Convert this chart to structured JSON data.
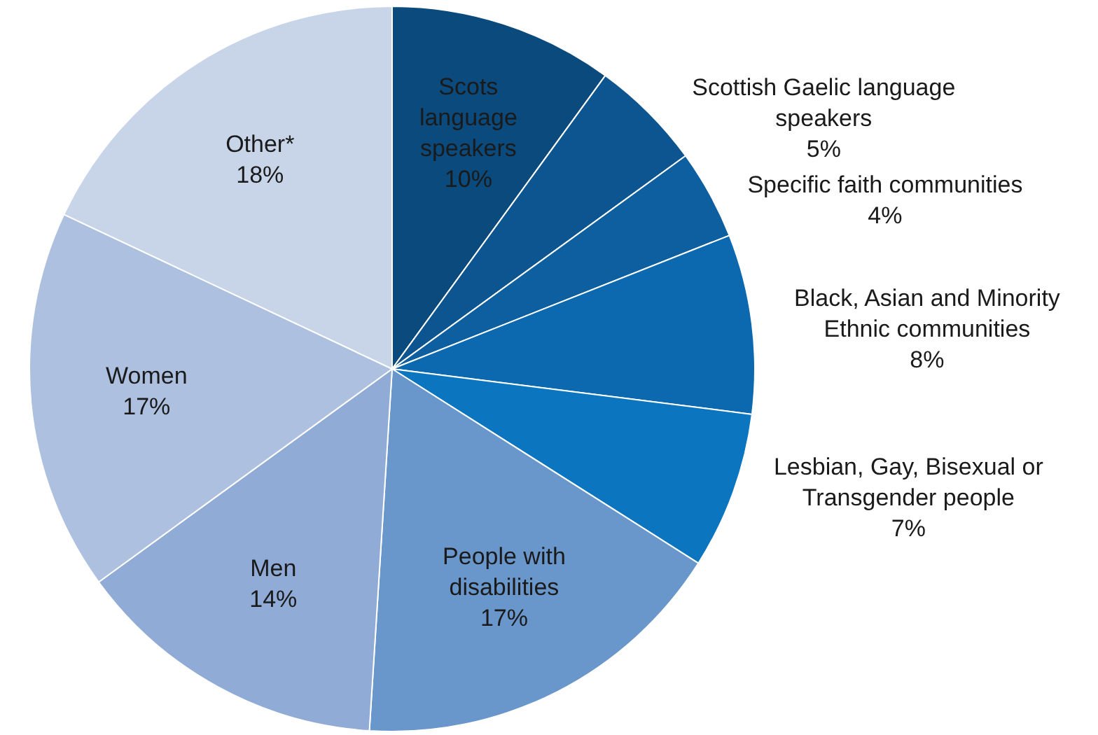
{
  "chart_data": {
    "type": "pie",
    "categories": [
      "Scots language speakers",
      "Scottish Gaelic language speakers",
      "Specific faith communities",
      "Black, Asian and Minority Ethnic communities",
      "Lesbian, Gay, Bisexual or Transgender people",
      "People with disabilities",
      "Men",
      "Women",
      "Other*"
    ],
    "values": [
      10,
      5,
      4,
      8,
      7,
      17,
      14,
      17,
      18
    ],
    "value_labels": [
      "10%",
      "5%",
      "4%",
      "8%",
      "7%",
      "17%",
      "14%",
      "17%",
      "18%"
    ],
    "colors": [
      "#0b4a7d",
      "#0c5590",
      "#0d5fa0",
      "#0c69b0",
      "#0b75bf",
      "#6a97cb",
      "#90abd6",
      "#adc0e0",
      "#c8d5e9"
    ]
  }
}
